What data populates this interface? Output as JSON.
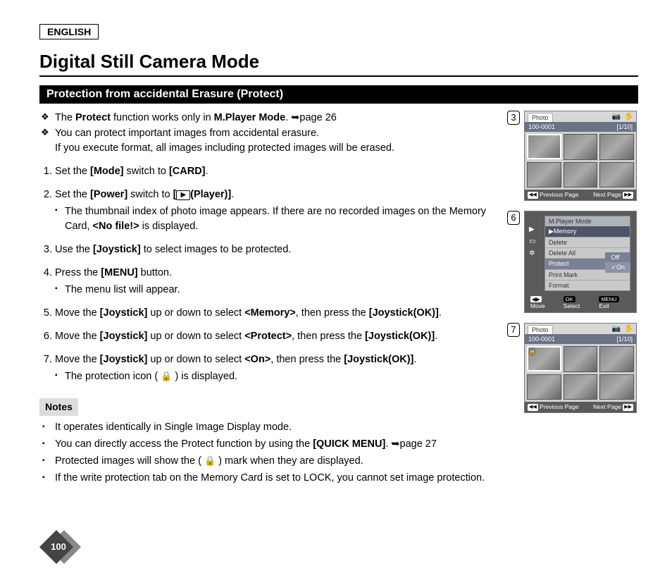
{
  "lang": "ENGLISH",
  "title": "Digital Still Camera Mode",
  "subtitle": "Protection from accidental Erasure (Protect)",
  "intro": {
    "l1a": "The ",
    "l1b": "Protect",
    "l1c": " function works only in ",
    "l1d": "M.Player Mode",
    "l1e": ". ➥page 26",
    "l2": "You can protect important images from accidental erasure.",
    "l3": "If you execute format, all images including protected images will be erased."
  },
  "steps": {
    "s1a": "Set the ",
    "s1b": "[Mode]",
    "s1c": " switch to ",
    "s1d": "[CARD]",
    "s1e": ".",
    "s2a": "Set the ",
    "s2b": "[Power]",
    "s2c": " switch to ",
    "s2d": "[",
    "s2icon": "▶",
    "s2e": "(Player)]",
    "s2f": ".",
    "s2sub": "The thumbnail index of photo image appears. If there are no recorded images on the Memory Card, ",
    "s2sub_b": "<No file!>",
    "s2sub_c": " is displayed.",
    "s3a": "Use the ",
    "s3b": "[Joystick]",
    "s3c": " to select images to be protected.",
    "s4a": "Press the ",
    "s4b": "[MENU]",
    "s4c": " button.",
    "s4sub": "The menu list will appear.",
    "s5a": "Move the ",
    "s5b": "[Joystick]",
    "s5c": " up or down to select ",
    "s5d": "<Memory>",
    "s5e": ", then press the ",
    "s5f": "[Joystick(OK)]",
    "s5g": ".",
    "s6a": "Move the ",
    "s6b": "[Joystick]",
    "s6c": " up or down to select ",
    "s6d": "<Protect>",
    "s6e": ", then press the ",
    "s6f": "[Joystick(OK)]",
    "s6g": ".",
    "s7a": "Move the ",
    "s7b": "[Joystick]",
    "s7c": " up or down to select ",
    "s7d": "<On>",
    "s7e": ", then press the ",
    "s7f": "[Joystick(OK)]",
    "s7g": ".",
    "s7sub_a": "The protection icon ( ",
    "s7sub_lock": "🔒",
    "s7sub_b": " ) is displayed."
  },
  "notes_label": "Notes",
  "notes": {
    "n1": "It operates identically in Single Image Display mode.",
    "n2a": "You can directly access the Protect function by using the ",
    "n2b": "[QUICK MENU]",
    "n2c": ". ➥page 27",
    "n3a": "Protected images will show the ( ",
    "n3lock": "🔒",
    "n3b": " ) mark when they are displayed.",
    "n4": "If the write protection tab on the Memory Card is set to LOCK, you cannot set image protection."
  },
  "fig": {
    "n3": "3",
    "n6": "6",
    "n7": "7",
    "photo_tab": "Photo",
    "idnum": "100-0001",
    "counter": "[1/10]",
    "prev": "Previous Page",
    "next": "Next Page",
    "menu": {
      "mode": "M.Player Mode",
      "memory": "Memory",
      "delete": "Delete",
      "deleteall": "Delete All",
      "protect": "Protect",
      "printmark": "Print Mark",
      "format": "Format",
      "off": "Off",
      "on": "On",
      "move": "Move",
      "select": "Select",
      "exit": "Exit",
      "ok": "OK",
      "menu_btn": "MENU"
    }
  },
  "page_number": "100"
}
